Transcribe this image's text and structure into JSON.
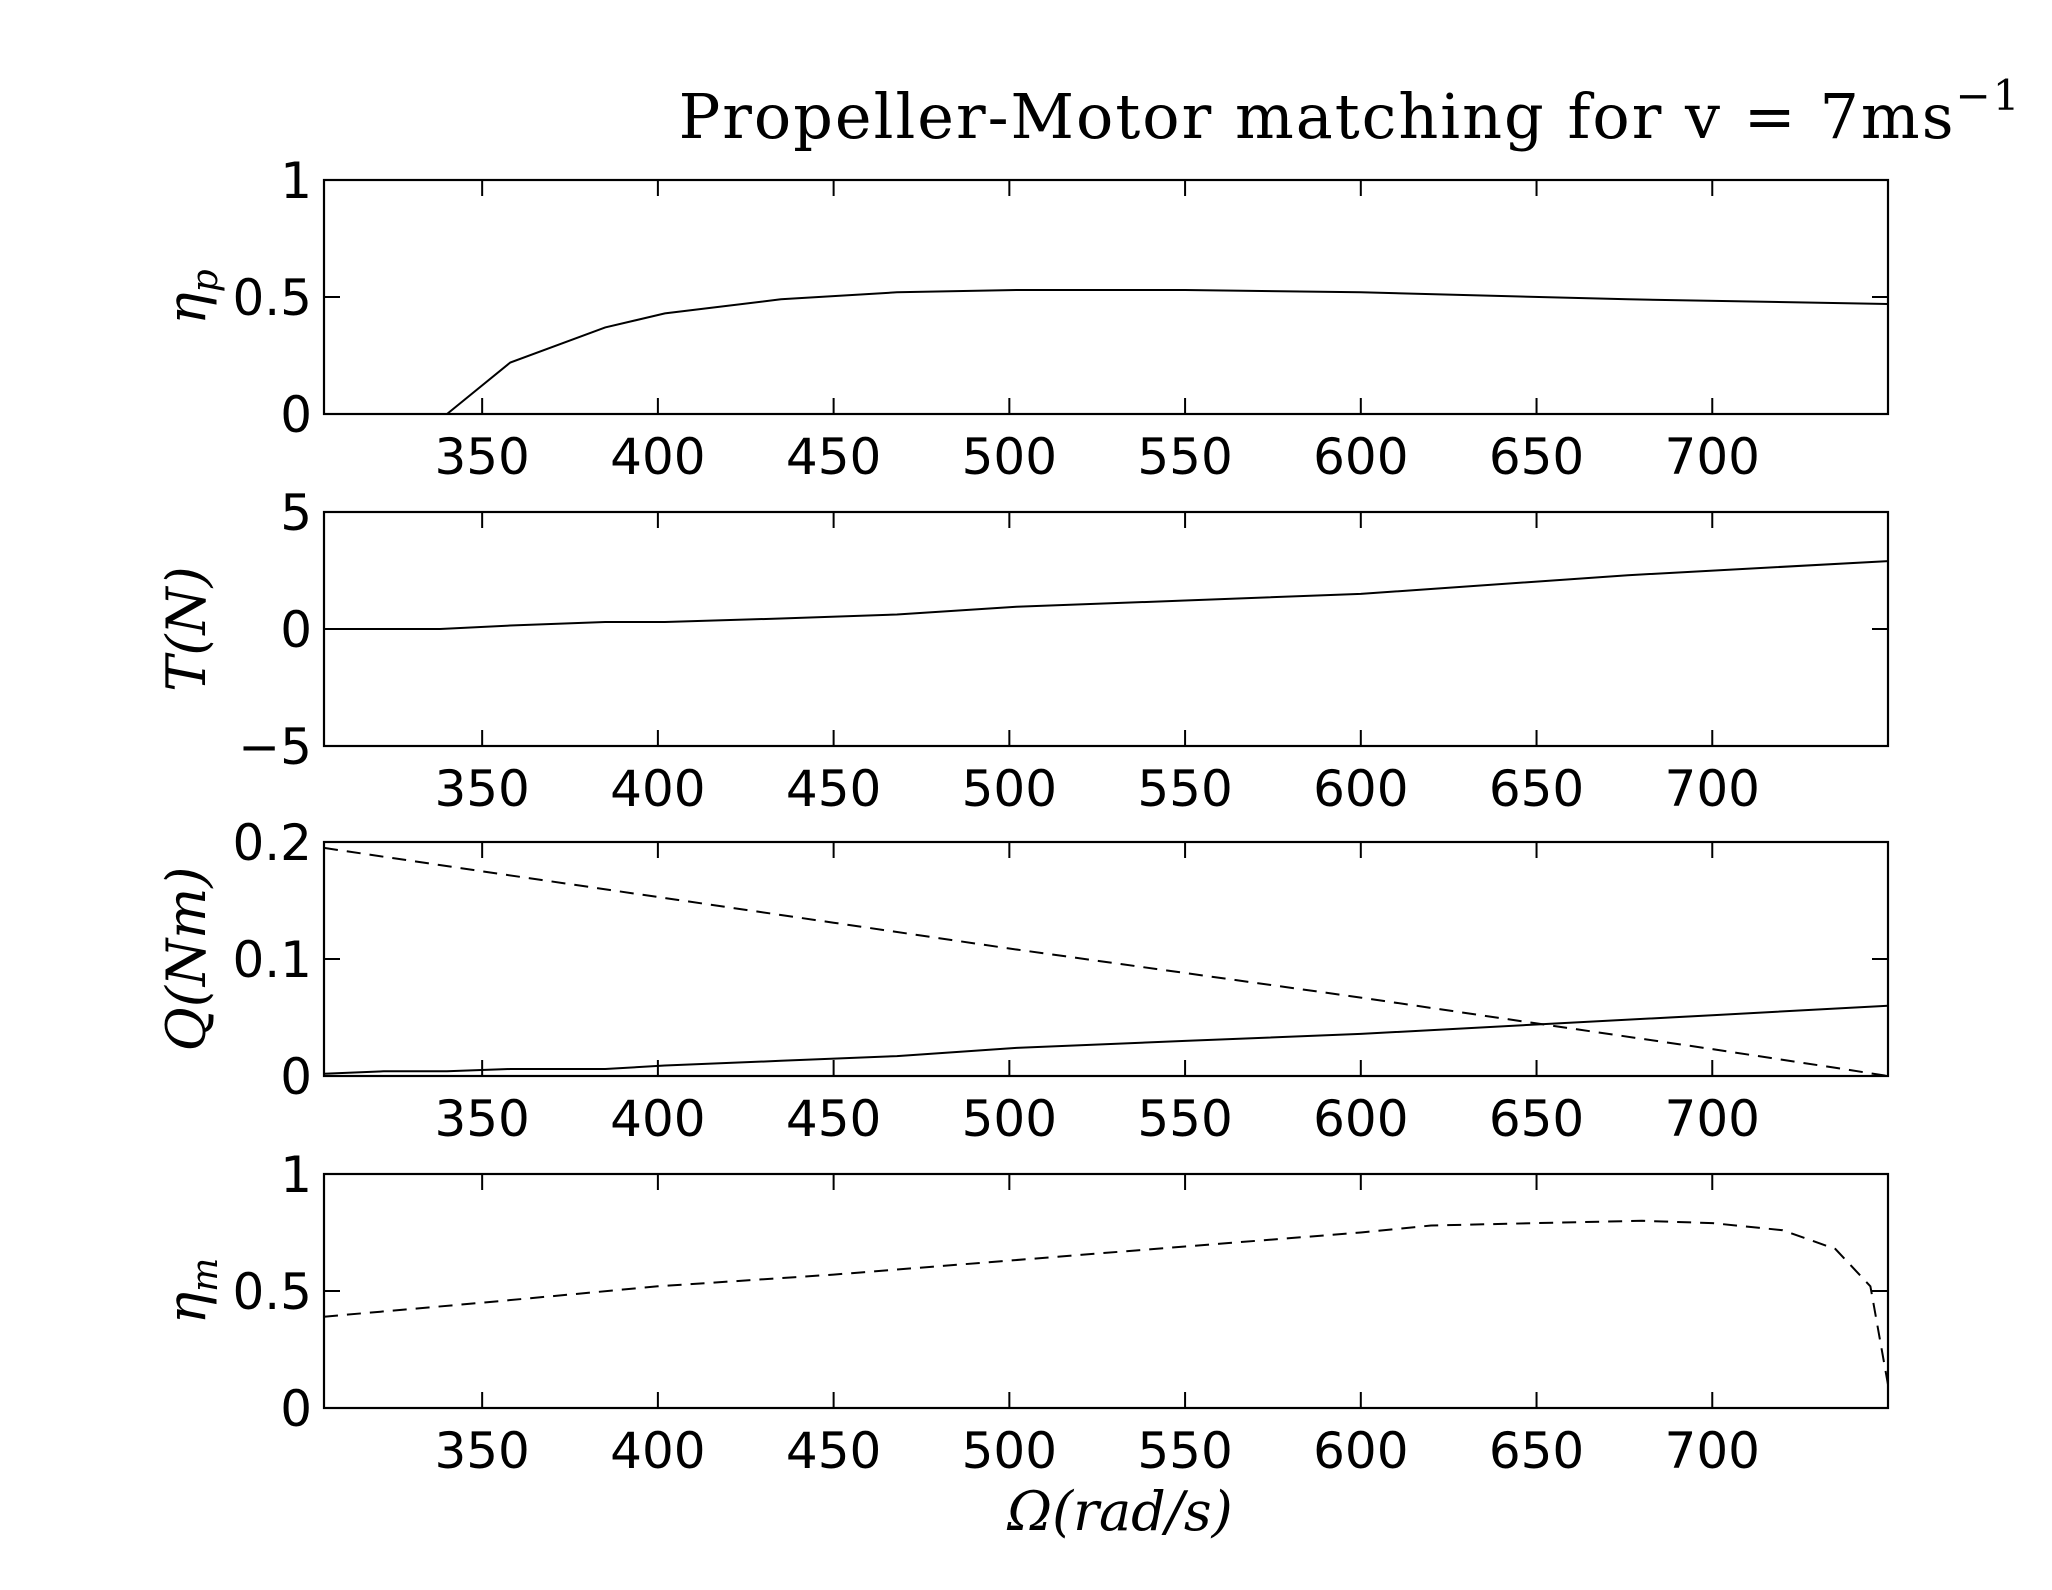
{
  "figure_title": "Propeller-Motor matching for v = 7ms",
  "title_superscript": "−1",
  "xlabel": "Ω(rad/s)",
  "chart_data": [
    {
      "type": "line",
      "ylabel": "η",
      "ylabel_sub": "p",
      "xlim": [
        305,
        750
      ],
      "ylim": [
        0,
        1
      ],
      "xticks": [
        350,
        400,
        450,
        500,
        550,
        600,
        650,
        700
      ],
      "yticks": [
        0,
        0.5,
        1
      ],
      "ytick_labels": [
        "0",
        "0.5",
        "1"
      ],
      "series": [
        {
          "style": "solid",
          "x": [
            340,
            358,
            385,
            402,
            435,
            468,
            502,
            550,
            600,
            676,
            750
          ],
          "y": [
            0,
            0.22,
            0.37,
            0.43,
            0.49,
            0.52,
            0.53,
            0.53,
            0.52,
            0.49,
            0.47
          ]
        }
      ]
    },
    {
      "type": "line",
      "ylabel": "T(N)",
      "xlim": [
        305,
        750
      ],
      "ylim": [
        -5,
        5
      ],
      "xticks": [
        350,
        400,
        450,
        500,
        550,
        600,
        650,
        700
      ],
      "yticks": [
        -5,
        0,
        5
      ],
      "ytick_labels": [
        "−5",
        "0",
        "5"
      ],
      "series": [
        {
          "style": "solid",
          "x": [
            305,
            338,
            358,
            385,
            402,
            435,
            468,
            502,
            550,
            600,
            676,
            750
          ],
          "y": [
            0,
            0,
            0.15,
            0.3,
            0.3,
            0.45,
            0.62,
            0.95,
            1.22,
            1.5,
            2.3,
            2.9
          ]
        }
      ]
    },
    {
      "type": "line",
      "ylabel": "Q(Nm)",
      "xlim": [
        305,
        750
      ],
      "ylim": [
        0,
        0.2
      ],
      "xticks": [
        350,
        400,
        450,
        500,
        550,
        600,
        650,
        700
      ],
      "yticks": [
        0,
        0.1,
        0.2
      ],
      "ytick_labels": [
        "0",
        "0.1",
        "0.2"
      ],
      "series": [
        {
          "style": "solid",
          "x": [
            305,
            322,
            340,
            358,
            385,
            402,
            435,
            468,
            502,
            550,
            600,
            650,
            700,
            750
          ],
          "y": [
            0.002,
            0.004,
            0.004,
            0.006,
            0.006,
            0.009,
            0.013,
            0.017,
            0.024,
            0.03,
            0.036,
            0.044,
            0.052,
            0.06
          ]
        },
        {
          "style": "dashed",
          "x": [
            305,
            350,
            400,
            450,
            500,
            550,
            600,
            650,
            700,
            735,
            750
          ],
          "y": [
            0.195,
            0.175,
            0.153,
            0.131,
            0.109,
            0.088,
            0.067,
            0.045,
            0.023,
            0.007,
            0.0
          ]
        }
      ]
    },
    {
      "type": "line",
      "ylabel": "η",
      "ylabel_sub": "m",
      "xlim": [
        305,
        750
      ],
      "ylim": [
        0,
        1
      ],
      "xticks": [
        350,
        400,
        450,
        500,
        550,
        600,
        650,
        700
      ],
      "yticks": [
        0,
        0.5,
        1
      ],
      "ytick_labels": [
        "0",
        "0.5",
        "1"
      ],
      "series": [
        {
          "style": "dashed",
          "x": [
            305,
            350,
            400,
            450,
            500,
            550,
            600,
            620,
            650,
            680,
            700,
            720,
            735,
            745,
            750
          ],
          "y": [
            0.39,
            0.45,
            0.52,
            0.57,
            0.63,
            0.69,
            0.75,
            0.78,
            0.79,
            0.8,
            0.79,
            0.76,
            0.68,
            0.52,
            0.1
          ]
        }
      ]
    }
  ]
}
